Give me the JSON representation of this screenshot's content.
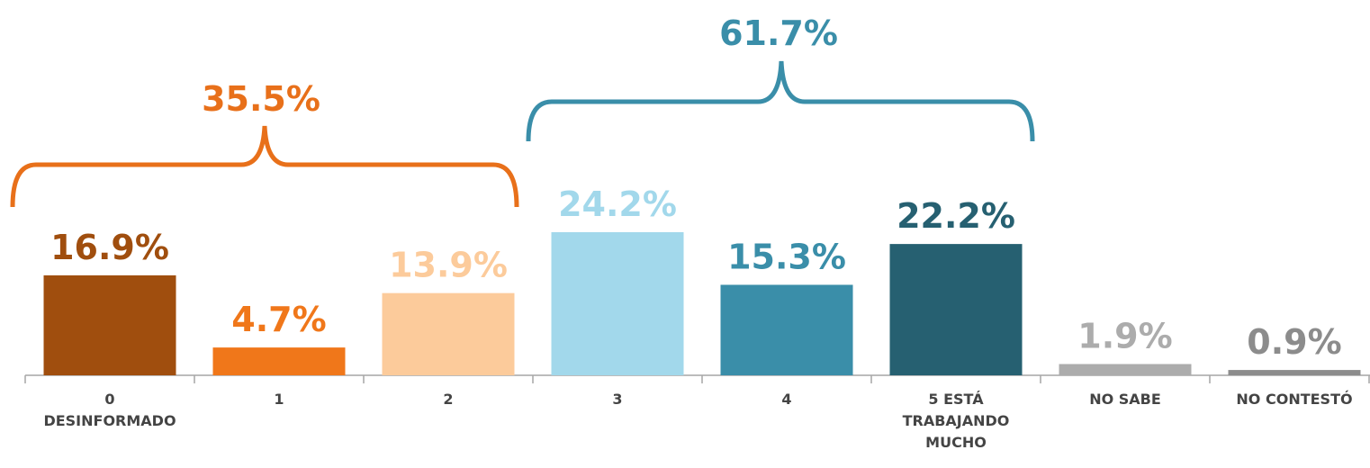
{
  "chart_data": {
    "type": "bar",
    "categories": [
      "0\nDESINFORMADO",
      "1",
      "2",
      "3",
      "4",
      "5 ESTÁ\nTRABAJANDO\nMUCHO",
      "NO SABE",
      "NO CONTESTÓ"
    ],
    "values": [
      16.9,
      4.7,
      13.9,
      24.2,
      15.3,
      22.2,
      1.9,
      0.9
    ],
    "value_labels": [
      "16.9%",
      "4.7%",
      "13.9%",
      "24.2%",
      "15.3%",
      "22.2%",
      "1.9%",
      "0.9%"
    ],
    "colors": [
      "#a04e0e",
      "#f0771a",
      "#fccb9b",
      "#a2d8eb",
      "#3a8ea9",
      "#266071",
      "#acacac",
      "#8c8c8c"
    ],
    "label_colors": [
      "#a04e0e",
      "#f0771a",
      "#fccb9b",
      "#a2d8eb",
      "#3a8ea9",
      "#266071",
      "#acacac",
      "#8c8c8c"
    ],
    "ylim": [
      0,
      63
    ],
    "annotations": [
      {
        "text": "35.5%",
        "color": "#e8701a"
      },
      {
        "text": "61.7%",
        "color": "#3a8ea9"
      }
    ]
  }
}
